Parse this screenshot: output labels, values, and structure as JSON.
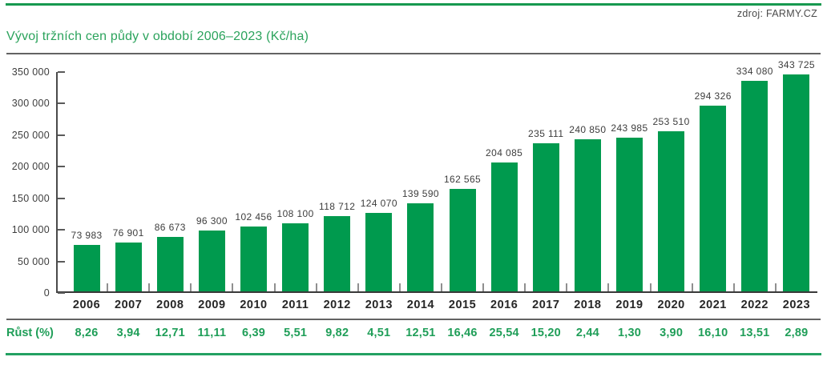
{
  "header": {
    "source": "zdroj: FARMY.CZ"
  },
  "title": "Vývoj tržních cen půdy v období 2006–2023 (Kč/ha)",
  "chart_data": {
    "type": "bar",
    "title": "Vývoj tržních cen půdy v období 2006–2023 (Kč/ha)",
    "xlabel": "",
    "ylabel": "Kč/ha",
    "ylim": [
      0,
      350000
    ],
    "grid": false,
    "legend": false,
    "categories": [
      "2006",
      "2007",
      "2008",
      "2009",
      "2010",
      "2011",
      "2012",
      "2013",
      "2014",
      "2015",
      "2016",
      "2017",
      "2018",
      "2019",
      "2020",
      "2021",
      "2022",
      "2023"
    ],
    "values": [
      73983,
      76901,
      86673,
      96300,
      102456,
      108100,
      118712,
      124070,
      139590,
      162565,
      204085,
      235111,
      240850,
      243985,
      253510,
      294326,
      334080,
      343725
    ],
    "value_labels": [
      "73 983",
      "76 901",
      "86 673",
      "96 300",
      "102 456",
      "108 100",
      "118 712",
      "124 070",
      "139 590",
      "162 565",
      "204 085",
      "235 111",
      "240 850",
      "243 985",
      "253 510",
      "294 326",
      "334 080",
      "343 725"
    ],
    "y_ticks": [
      {
        "label": "350 000",
        "value": 350000
      },
      {
        "label": "300 000",
        "value": 300000
      },
      {
        "label": "250 000",
        "value": 250000
      },
      {
        "label": "200 000",
        "value": 200000
      },
      {
        "label": "150 000",
        "value": 150000
      },
      {
        "label": "100 000",
        "value": 100000
      },
      {
        "label": "50 000",
        "value": 50000
      },
      {
        "label": "0",
        "value": 0
      }
    ],
    "growth_row": {
      "label": "Růst (%)",
      "values": [
        "8,26",
        "3,94",
        "12,71",
        "11,11",
        "6,39",
        "5,51",
        "9,82",
        "4,51",
        "12,51",
        "16,46",
        "25,54",
        "15,20",
        "2,44",
        "1,30",
        "3,90",
        "16,10",
        "13,51",
        "2,89"
      ]
    },
    "bar_color": "#009a4e"
  },
  "colors": {
    "bar_green": "#009a4e",
    "title_green": "#2ba35c",
    "growth_green": "#1f9e58",
    "rule_green_top": "#17994f",
    "rule_green_bottom": "#23a162",
    "divider_gray": "#636363",
    "text_dark": "#3d3d3d"
  }
}
